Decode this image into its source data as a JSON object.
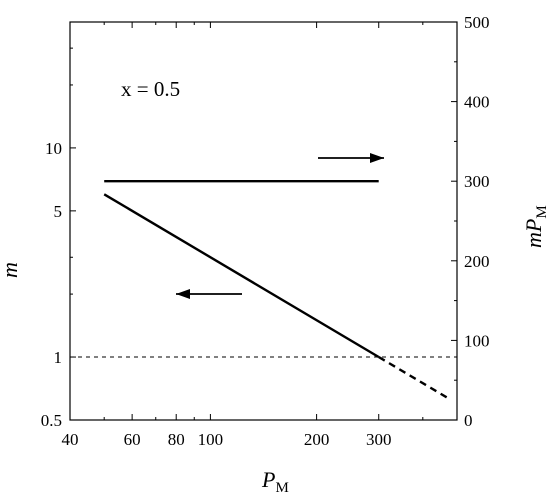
{
  "chart_data": {
    "type": "line",
    "x_axis": {
      "scale": "log",
      "range": [
        40,
        500
      ],
      "ticks": [
        40,
        60,
        80,
        100,
        200,
        300
      ],
      "tick_labels": [
        "40",
        "60",
        "80",
        "100",
        "200",
        "300"
      ],
      "label_main": "P",
      "label_sub": "M"
    },
    "y_left": {
      "scale": "log",
      "range": [
        0.5,
        40
      ],
      "ticks": [
        0.5,
        1,
        5,
        10
      ],
      "tick_labels": [
        "0.5",
        "1",
        "5",
        "10"
      ],
      "label": "m"
    },
    "y_right": {
      "scale": "linear",
      "range": [
        0,
        500
      ],
      "ticks": [
        0,
        100,
        200,
        300,
        400,
        500
      ],
      "tick_labels": [
        "0",
        "100",
        "200",
        "300",
        "400",
        "500"
      ],
      "label_main": "mP",
      "label_sub": "M"
    },
    "series": [
      {
        "axis": "left",
        "style": "solid",
        "x": [
          50,
          300
        ],
        "y": [
          6.0,
          1.0
        ]
      },
      {
        "axis": "left",
        "style": "dashed",
        "x": [
          300,
          480
        ],
        "y": [
          1.0,
          0.625
        ]
      },
      {
        "axis": "right",
        "style": "solid",
        "x": [
          50,
          300
        ],
        "y": [
          300,
          300
        ]
      }
    ],
    "reference_lines": [
      {
        "axis": "left",
        "y": 1,
        "style": "dotted"
      }
    ],
    "annotations": [
      {
        "text": "x = 0.5"
      }
    ],
    "arrows": [
      {
        "direction": "right",
        "points_to": "right-axis"
      },
      {
        "direction": "left",
        "points_to": "left-axis"
      }
    ],
    "grid": false,
    "legend": "none"
  }
}
